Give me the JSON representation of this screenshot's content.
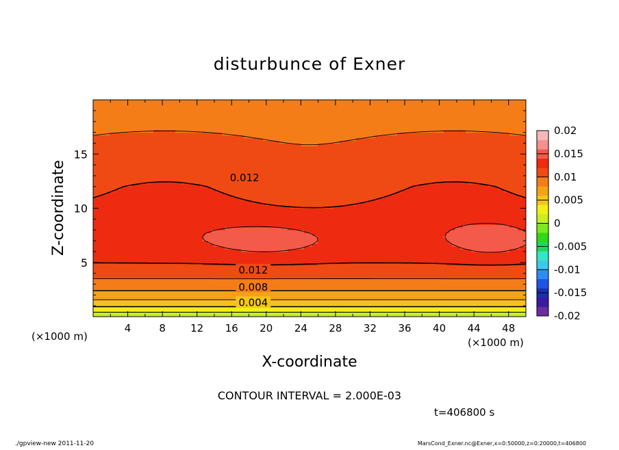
{
  "chart_data": {
    "type": "heatmap",
    "title": "disturbunce of Exner",
    "xlabel": "X-coordinate",
    "ylabel": "Z-coordinate",
    "x_unit_left": "(×1000 m)",
    "x_unit_right": "(×1000 m)",
    "xlim": [
      0,
      50
    ],
    "ylim": [
      0,
      20
    ],
    "x_ticks": [
      4,
      8,
      12,
      16,
      20,
      24,
      28,
      32,
      36,
      40,
      44,
      48
    ],
    "y_ticks": [
      5,
      10,
      15
    ],
    "colorbar": {
      "ticks": [
        "0.02",
        "0.015",
        "0.01",
        "0.005",
        "0",
        "-0.005",
        "-0.01",
        "-0.015",
        "-0.02"
      ],
      "range": [
        -0.02,
        0.02
      ]
    },
    "contour_labels": [
      {
        "text": "0.012",
        "x": 17.5,
        "z": 12.8
      },
      {
        "text": "0.012",
        "x": 18.5,
        "z": 4.3
      },
      {
        "text": "0.008",
        "x": 18.5,
        "z": 2.7
      },
      {
        "text": "0.004",
        "x": 18.5,
        "z": 1.3
      }
    ],
    "contour_interval_text": "CONTOUR INTERVAL = 2.000E-03",
    "time_text": "t=406800 s"
  },
  "footer": {
    "left": "./gpview-new   2011-11-20",
    "right": "MarsCond_Exner.nc@Exner,x=0:50000,z=0:20000,t=406800"
  }
}
